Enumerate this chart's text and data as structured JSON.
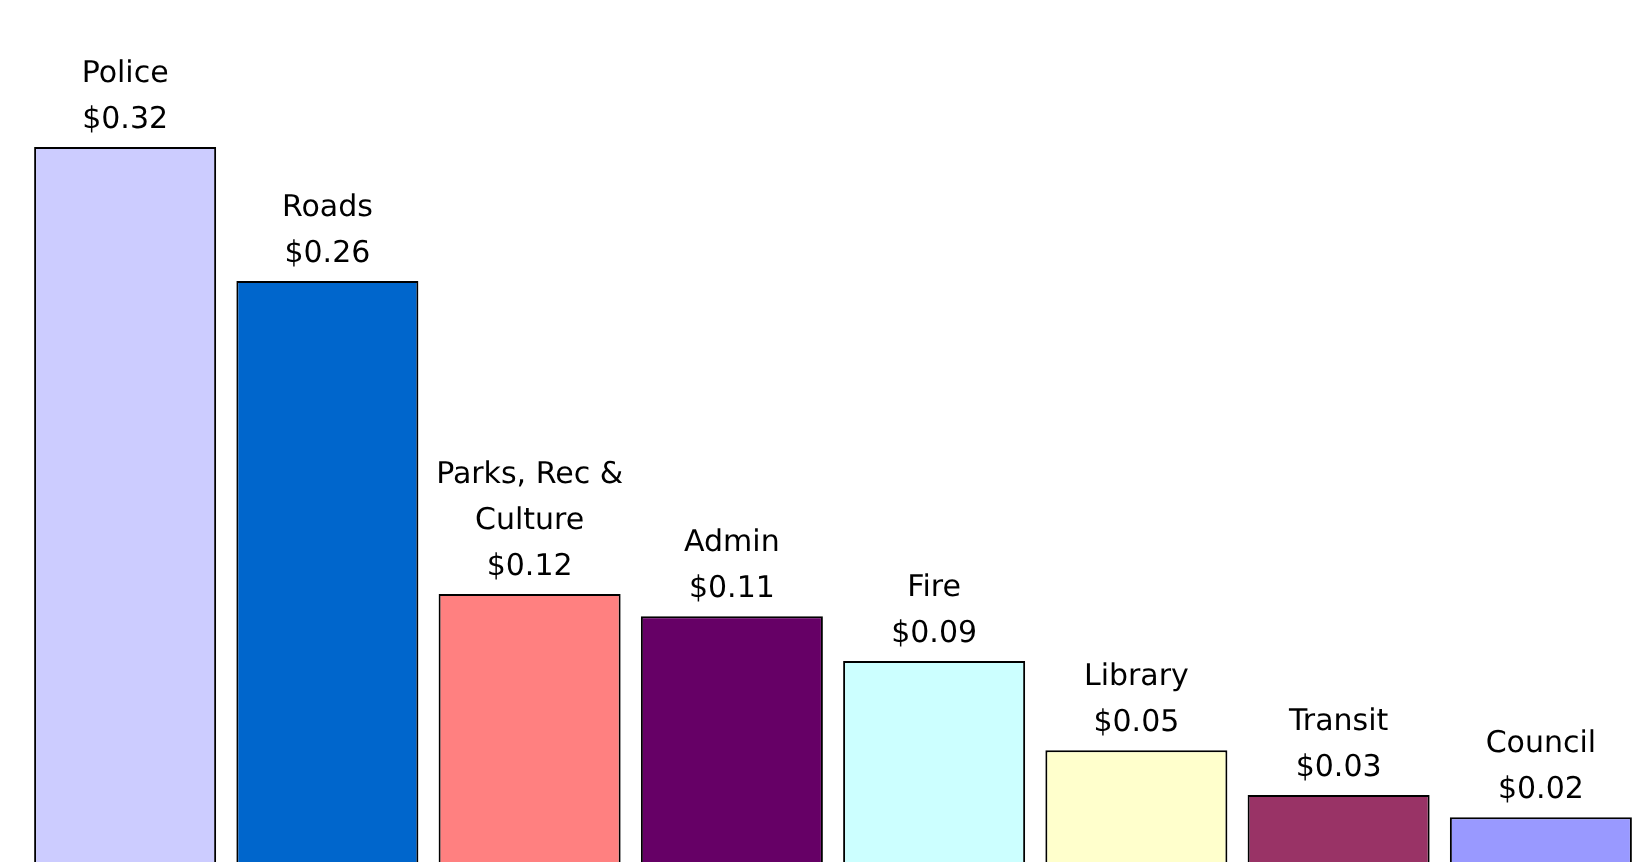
{
  "chart_data": {
    "type": "bar",
    "categories": [
      "Police",
      "Roads",
      "Parks, Rec & Culture",
      "Admin",
      "Fire",
      "Library",
      "Transit",
      "Council"
    ],
    "values": [
      0.32,
      0.26,
      0.12,
      0.11,
      0.09,
      0.05,
      0.03,
      0.02
    ],
    "value_labels": [
      "$0.32",
      "$0.26",
      "$0.12",
      "$0.11",
      "$0.09",
      "$0.05",
      "$0.03",
      "$0.02"
    ],
    "colors": [
      "#ccccff",
      "#0066cc",
      "#ff8080",
      "#660066",
      "#ccffff",
      "#ffffcc",
      "#993366",
      "#9999ff"
    ],
    "tick_labels": false,
    "legend": false
  }
}
